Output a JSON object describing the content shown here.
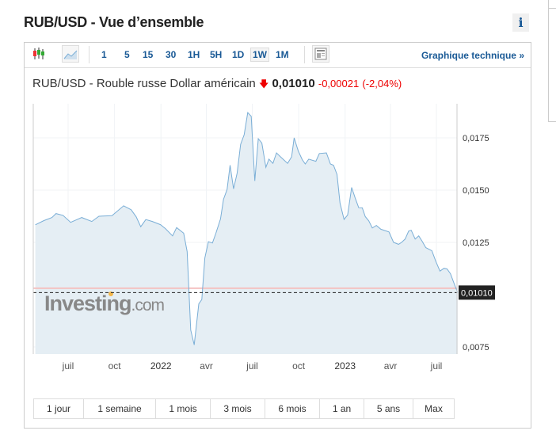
{
  "page_title": "RUB/USD - Vue d’ensemble",
  "info_icon": "i",
  "toolbar": {
    "chart_types": [
      "candlestick-icon",
      "area-chart-icon"
    ],
    "intervals": [
      "1",
      "5",
      "15",
      "30",
      "1H",
      "5H",
      "1D",
      "1W",
      "1M"
    ],
    "active_interval": "1W",
    "layout_icon": "layout-icon",
    "technical_link": "Graphique technique »"
  },
  "quote": {
    "name": "RUB/USD - Rouble russe Dollar américain",
    "direction": "down",
    "price": "0,01010",
    "change": "-0,00021",
    "change_pct": "(-2,04%)"
  },
  "colors": {
    "line": "#7aaed6",
    "fill": "#e5eef4",
    "accent": "#1a5a96",
    "negative": "#e00000",
    "prev_close_line": "#f4c2c2"
  },
  "watermark": "Investing.com",
  "chart_data": {
    "type": "area",
    "x_ticks": [
      "juil",
      "oct",
      "2022",
      "avr",
      "juil",
      "oct",
      "2023",
      "avr",
      "juil"
    ],
    "x_tick_dates": [
      "2021-07-01",
      "2021-10-01",
      "2022-01-01",
      "2022-04-01",
      "2022-07-01",
      "2022-10-01",
      "2023-01-01",
      "2023-04-01",
      "2023-07-01"
    ],
    "y_ticks": [
      "0,0175",
      "0,0150",
      "0,0125",
      "0,0075"
    ],
    "y_tick_values": [
      0.0175,
      0.015,
      0.0125,
      0.0075
    ],
    "last_value_label": "0,01010",
    "last_value": 0.0101,
    "previous_close": 0.01031,
    "grid": true,
    "points": [
      [
        "2021-04-27",
        0.01334
      ],
      [
        "2021-05-14",
        0.01354
      ],
      [
        "2021-05-30",
        0.01369
      ],
      [
        "2021-06-07",
        0.01388
      ],
      [
        "2021-06-21",
        0.01379
      ],
      [
        "2021-07-06",
        0.01346
      ],
      [
        "2021-07-28",
        0.01369
      ],
      [
        "2021-08-17",
        0.0135
      ],
      [
        "2021-08-31",
        0.01375
      ],
      [
        "2021-09-26",
        0.01378
      ],
      [
        "2021-10-19",
        0.01425
      ],
      [
        "2021-11-03",
        0.01406
      ],
      [
        "2021-11-13",
        0.01372
      ],
      [
        "2021-11-22",
        0.01325
      ],
      [
        "2021-12-02",
        0.01359
      ],
      [
        "2021-12-15",
        0.0135
      ],
      [
        "2021-12-31",
        0.01335
      ],
      [
        "2022-01-10",
        0.01316
      ],
      [
        "2022-01-24",
        0.01281
      ],
      [
        "2022-02-01",
        0.01321
      ],
      [
        "2022-02-15",
        0.01294
      ],
      [
        "2022-02-22",
        0.01206
      ],
      [
        "2022-03-01",
        0.00831
      ],
      [
        "2022-03-08",
        0.0076
      ],
      [
        "2022-03-17",
        0.00956
      ],
      [
        "2022-03-23",
        0.00977
      ],
      [
        "2022-03-29",
        0.01175
      ],
      [
        "2022-04-05",
        0.01253
      ],
      [
        "2022-04-13",
        0.01247
      ],
      [
        "2022-04-20",
        0.01294
      ],
      [
        "2022-04-29",
        0.01362
      ],
      [
        "2022-05-05",
        0.01456
      ],
      [
        "2022-05-12",
        0.01503
      ],
      [
        "2022-05-18",
        0.01619
      ],
      [
        "2022-05-25",
        0.01506
      ],
      [
        "2022-06-01",
        0.01581
      ],
      [
        "2022-06-08",
        0.01719
      ],
      [
        "2022-06-15",
        0.01765
      ],
      [
        "2022-06-22",
        0.01871
      ],
      [
        "2022-06-29",
        0.01853
      ],
      [
        "2022-07-06",
        0.01544
      ],
      [
        "2022-07-13",
        0.01746
      ],
      [
        "2022-07-20",
        0.01725
      ],
      [
        "2022-07-28",
        0.01609
      ],
      [
        "2022-08-03",
        0.01648
      ],
      [
        "2022-08-11",
        0.01628
      ],
      [
        "2022-08-18",
        0.01678
      ],
      [
        "2022-08-26",
        0.01659
      ],
      [
        "2022-09-09",
        0.01628
      ],
      [
        "2022-09-17",
        0.01659
      ],
      [
        "2022-09-22",
        0.0175
      ],
      [
        "2022-09-30",
        0.01688
      ],
      [
        "2022-10-08",
        0.01646
      ],
      [
        "2022-10-14",
        0.01625
      ],
      [
        "2022-10-21",
        0.01648
      ],
      [
        "2022-11-04",
        0.01638
      ],
      [
        "2022-11-11",
        0.01675
      ],
      [
        "2022-11-25",
        0.01678
      ],
      [
        "2022-12-03",
        0.01625
      ],
      [
        "2022-12-09",
        0.01619
      ],
      [
        "2022-12-16",
        0.01575
      ],
      [
        "2022-12-22",
        0.01438
      ],
      [
        "2022-12-30",
        0.0136
      ],
      [
        "2023-01-06",
        0.01381
      ],
      [
        "2023-01-14",
        0.01513
      ],
      [
        "2023-01-21",
        0.01463
      ],
      [
        "2023-01-28",
        0.01416
      ],
      [
        "2023-02-04",
        0.01415
      ],
      [
        "2023-02-10",
        0.01373
      ],
      [
        "2023-02-17",
        0.01353
      ],
      [
        "2023-02-24",
        0.01319
      ],
      [
        "2023-03-04",
        0.01331
      ],
      [
        "2023-03-13",
        0.01313
      ],
      [
        "2023-03-29",
        0.013
      ],
      [
        "2023-04-07",
        0.0125
      ],
      [
        "2023-04-17",
        0.01241
      ],
      [
        "2023-04-23",
        0.0125
      ],
      [
        "2023-04-30",
        0.01266
      ],
      [
        "2023-05-07",
        0.01304
      ],
      [
        "2023-05-12",
        0.01308
      ],
      [
        "2023-05-20",
        0.01266
      ],
      [
        "2023-05-27",
        0.01281
      ],
      [
        "2023-06-03",
        0.01254
      ],
      [
        "2023-06-10",
        0.01225
      ],
      [
        "2023-06-22",
        0.0121
      ],
      [
        "2023-06-30",
        0.01158
      ],
      [
        "2023-07-08",
        0.01113
      ],
      [
        "2023-07-16",
        0.01126
      ],
      [
        "2023-07-22",
        0.01123
      ],
      [
        "2023-07-29",
        0.011
      ],
      [
        "2023-08-04",
        0.0106
      ],
      [
        "2023-08-12",
        0.0101
      ]
    ]
  },
  "ranges": [
    "1 jour",
    "1 semaine",
    "1 mois",
    "3 mois",
    "6 mois",
    "1 an",
    "5 ans",
    "Max"
  ]
}
